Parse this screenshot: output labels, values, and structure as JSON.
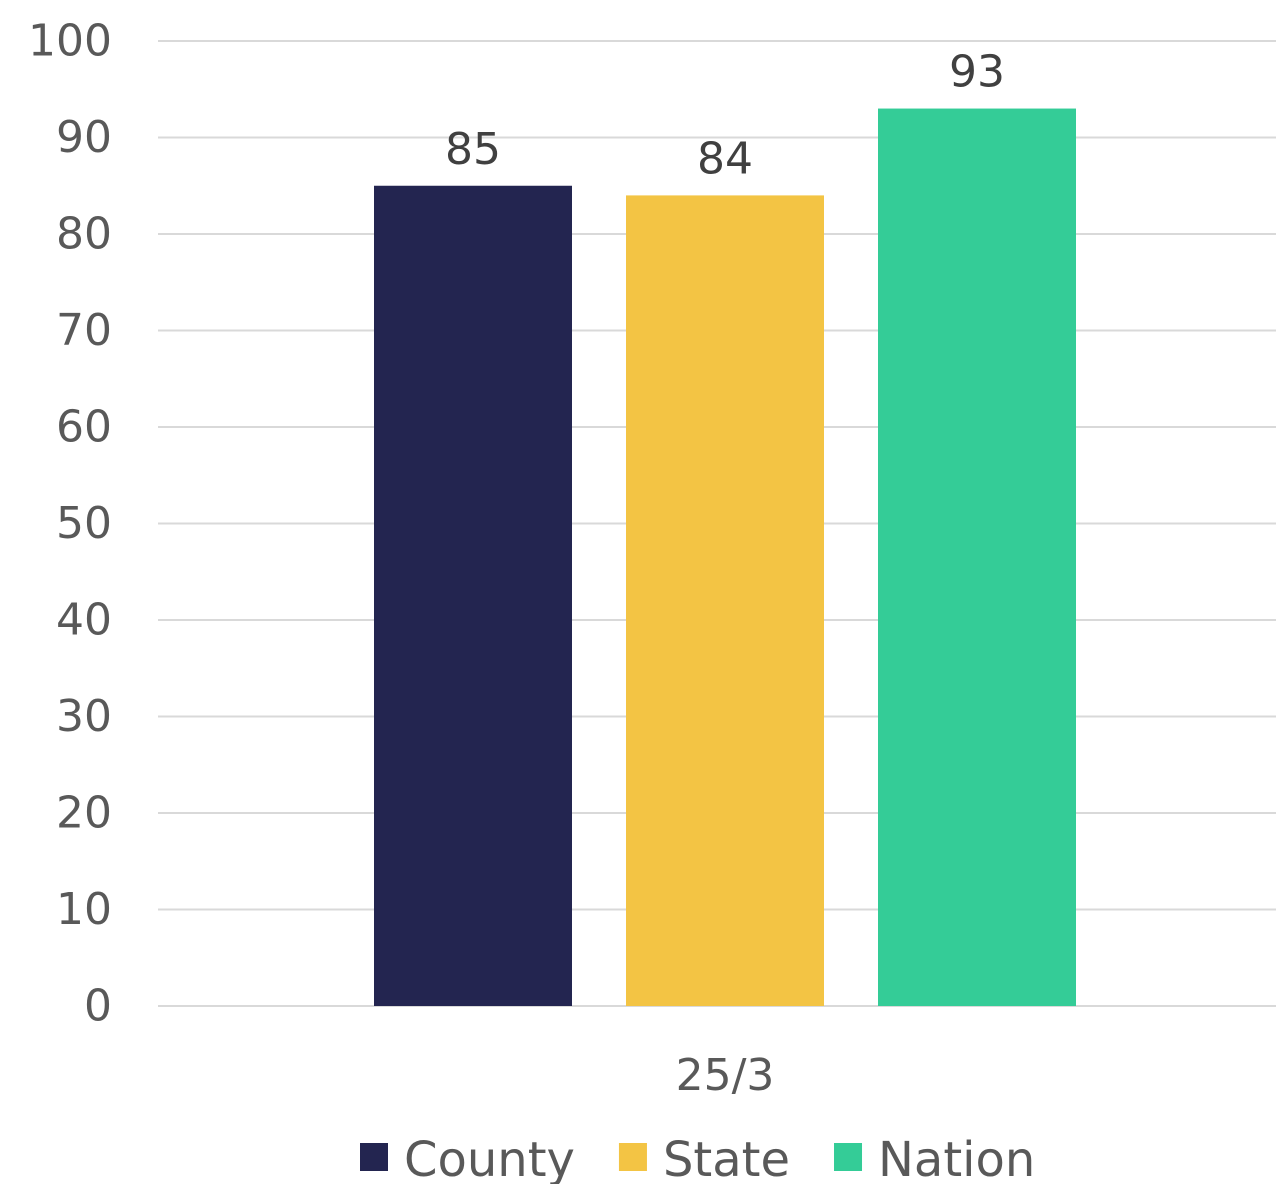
{
  "chart_data": {
    "type": "bar",
    "categories": [
      "25/3"
    ],
    "series": [
      {
        "name": "County",
        "values": [
          85
        ],
        "color": "#232550"
      },
      {
        "name": "State",
        "values": [
          84
        ],
        "color": "#F3C444"
      },
      {
        "name": "Nation",
        "values": [
          93
        ],
        "color": "#34CC97"
      }
    ],
    "ylim": [
      0,
      100
    ],
    "yticks": [
      0,
      10,
      20,
      30,
      40,
      50,
      60,
      70,
      80,
      90,
      100
    ],
    "grid": true,
    "legend_position": "bottom",
    "data_labels": true,
    "colors": {
      "grid": "#d9d9d9",
      "tick_text": "#595959",
      "label_text": "#404040"
    }
  }
}
